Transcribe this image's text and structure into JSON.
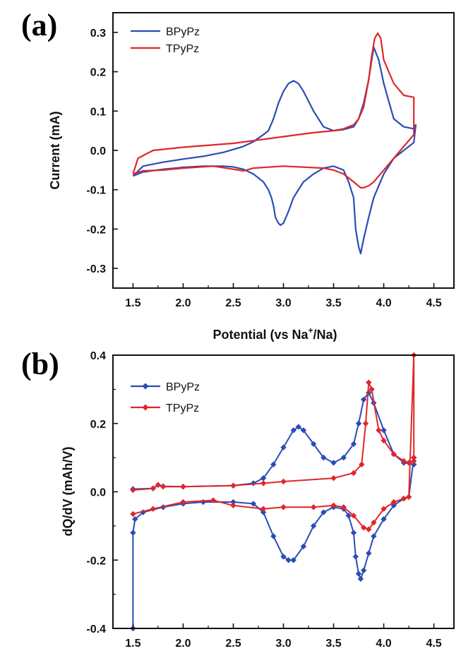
{
  "chart_data": [
    {
      "panel": "(a)",
      "type": "line",
      "title": "",
      "xlabel": "Potential (vs Na+/Na)",
      "xlabel_parts": {
        "pre": "Potential (vs Na",
        "sup": "+",
        "post": "/Na)"
      },
      "ylabel": "Current (mA)",
      "xlim": [
        1.3,
        4.7
      ],
      "ylim": [
        -0.35,
        0.35
      ],
      "xticks": [
        "1.5",
        "2.0",
        "2.5",
        "3.0",
        "3.5",
        "4.0",
        "4.5"
      ],
      "yticks": [
        "0.3",
        "0.2",
        "0.1",
        "0.0",
        "-0.1",
        "-0.2",
        "-0.3"
      ],
      "legend_position": "top-left",
      "series": [
        {
          "name": "BPyPz",
          "color": "#2a4db5",
          "x": [
            1.5,
            1.6,
            1.8,
            2.0,
            2.2,
            2.4,
            2.6,
            2.7,
            2.8,
            2.85,
            2.9,
            2.95,
            3.0,
            3.05,
            3.1,
            3.15,
            3.2,
            3.3,
            3.4,
            3.5,
            3.6,
            3.7,
            3.75,
            3.8,
            3.85,
            3.88,
            3.9,
            3.95,
            4.0,
            4.1,
            4.2,
            4.3,
            4.32,
            4.3,
            4.2,
            4.1,
            4.0,
            3.95,
            3.9,
            3.85,
            3.8,
            3.77,
            3.75,
            3.72,
            3.7,
            3.65,
            3.6,
            3.5,
            3.4,
            3.3,
            3.2,
            3.1,
            3.05,
            3.0,
            2.97,
            2.95,
            2.92,
            2.9,
            2.88,
            2.85,
            2.8,
            2.7,
            2.6,
            2.5,
            2.4,
            2.2,
            2.0,
            1.8,
            1.6,
            1.5
          ],
          "y": [
            -0.065,
            -0.04,
            -0.03,
            -0.022,
            -0.015,
            -0.005,
            0.01,
            0.022,
            0.04,
            0.05,
            0.08,
            0.12,
            0.15,
            0.17,
            0.177,
            0.17,
            0.15,
            0.1,
            0.06,
            0.05,
            0.053,
            0.06,
            0.08,
            0.12,
            0.18,
            0.23,
            0.262,
            0.23,
            0.17,
            0.08,
            0.06,
            0.055,
            0.065,
            0.02,
            0.0,
            -0.02,
            -0.06,
            -0.09,
            -0.12,
            -0.17,
            -0.225,
            -0.262,
            -0.245,
            -0.2,
            -0.12,
            -0.08,
            -0.05,
            -0.04,
            -0.045,
            -0.06,
            -0.08,
            -0.12,
            -0.155,
            -0.185,
            -0.19,
            -0.185,
            -0.17,
            -0.14,
            -0.12,
            -0.1,
            -0.08,
            -0.06,
            -0.048,
            -0.042,
            -0.04,
            -0.04,
            -0.043,
            -0.048,
            -0.055,
            -0.065
          ]
        },
        {
          "name": "TPyPz",
          "color": "#e0262a",
          "x": [
            1.5,
            1.55,
            1.7,
            2.0,
            2.5,
            3.0,
            3.3,
            3.5,
            3.6,
            3.7,
            3.75,
            3.8,
            3.85,
            3.88,
            3.91,
            3.94,
            3.97,
            4.0,
            4.1,
            4.2,
            4.3,
            4.3,
            4.2,
            4.1,
            4.0,
            3.9,
            3.85,
            3.8,
            3.77,
            3.7,
            3.6,
            3.5,
            3.4,
            3.0,
            2.7,
            2.6,
            2.5,
            2.3,
            2.0,
            1.8,
            1.6,
            1.5
          ],
          "y": [
            -0.06,
            -0.02,
            0.0,
            0.008,
            0.018,
            0.035,
            0.045,
            0.05,
            0.055,
            0.065,
            0.08,
            0.11,
            0.18,
            0.24,
            0.285,
            0.298,
            0.285,
            0.23,
            0.17,
            0.14,
            0.135,
            0.04,
            0.01,
            -0.02,
            -0.05,
            -0.08,
            -0.09,
            -0.095,
            -0.095,
            -0.08,
            -0.06,
            -0.05,
            -0.045,
            -0.04,
            -0.045,
            -0.052,
            -0.048,
            -0.04,
            -0.045,
            -0.05,
            -0.052,
            -0.06
          ]
        }
      ]
    },
    {
      "panel": "(b)",
      "type": "line",
      "title": "",
      "xlabel": "",
      "ylabel": "dQ/dV (mAh/V)",
      "xlim": [
        1.3,
        4.7
      ],
      "ylim": [
        -0.4,
        0.4
      ],
      "xticks": [
        "1.5",
        "2.0",
        "2.5",
        "3.0",
        "3.5",
        "4.0",
        "4.5"
      ],
      "yticks": [
        "0.4",
        "0.2",
        "0.0",
        "-0.2",
        "-0.4"
      ],
      "legend_position": "top-left",
      "series": [
        {
          "name": "BPyPz",
          "color": "#2a4db5",
          "x": [
            1.5,
            1.7,
            1.75,
            1.8,
            2.0,
            2.5,
            2.7,
            2.8,
            2.9,
            3.0,
            3.1,
            3.15,
            3.2,
            3.3,
            3.4,
            3.5,
            3.6,
            3.7,
            3.75,
            3.8,
            3.85,
            3.9,
            4.0,
            4.1,
            4.2,
            4.3,
            4.3,
            4.25,
            4.2,
            4.1,
            4.0,
            3.9,
            3.85,
            3.8,
            3.77,
            3.75,
            3.72,
            3.7,
            3.65,
            3.6,
            3.5,
            3.4,
            3.3,
            3.2,
            3.1,
            3.05,
            3.0,
            2.9,
            2.8,
            2.7,
            2.5,
            2.2,
            2.0,
            1.8,
            1.6,
            1.52,
            1.5,
            1.5
          ],
          "y": [
            0.008,
            0.01,
            0.02,
            0.016,
            0.015,
            0.018,
            0.025,
            0.04,
            0.08,
            0.13,
            0.18,
            0.19,
            0.18,
            0.14,
            0.1,
            0.085,
            0.1,
            0.14,
            0.2,
            0.27,
            0.29,
            0.26,
            0.18,
            0.11,
            0.085,
            0.08,
            0.1,
            -0.015,
            -0.02,
            -0.04,
            -0.08,
            -0.13,
            -0.18,
            -0.23,
            -0.255,
            -0.24,
            -0.19,
            -0.12,
            -0.07,
            -0.05,
            -0.045,
            -0.06,
            -0.1,
            -0.16,
            -0.2,
            -0.2,
            -0.19,
            -0.13,
            -0.06,
            -0.035,
            -0.03,
            -0.03,
            -0.035,
            -0.045,
            -0.06,
            -0.08,
            -0.12,
            -0.4
          ]
        },
        {
          "name": "TPyPz",
          "color": "#e0262a",
          "x": [
            1.5,
            1.7,
            1.75,
            1.8,
            2.0,
            2.5,
            2.8,
            3.0,
            3.5,
            3.7,
            3.78,
            3.82,
            3.85,
            3.88,
            3.95,
            4.0,
            4.1,
            4.2,
            4.25,
            4.3,
            4.3,
            4.3,
            4.25,
            4.2,
            4.1,
            4.0,
            3.9,
            3.85,
            3.8,
            3.7,
            3.6,
            3.5,
            3.3,
            3.0,
            2.8,
            2.5,
            2.3,
            2.0,
            1.7,
            1.5
          ],
          "y": [
            0.005,
            0.01,
            0.02,
            0.015,
            0.015,
            0.018,
            0.025,
            0.03,
            0.04,
            0.055,
            0.08,
            0.2,
            0.32,
            0.3,
            0.18,
            0.15,
            0.11,
            0.09,
            0.085,
            0.09,
            0.1,
            0.4,
            -0.015,
            -0.02,
            -0.03,
            -0.05,
            -0.09,
            -0.11,
            -0.105,
            -0.07,
            -0.045,
            -0.04,
            -0.045,
            -0.045,
            -0.05,
            -0.04,
            -0.025,
            -0.03,
            -0.05,
            -0.065
          ]
        }
      ]
    }
  ]
}
